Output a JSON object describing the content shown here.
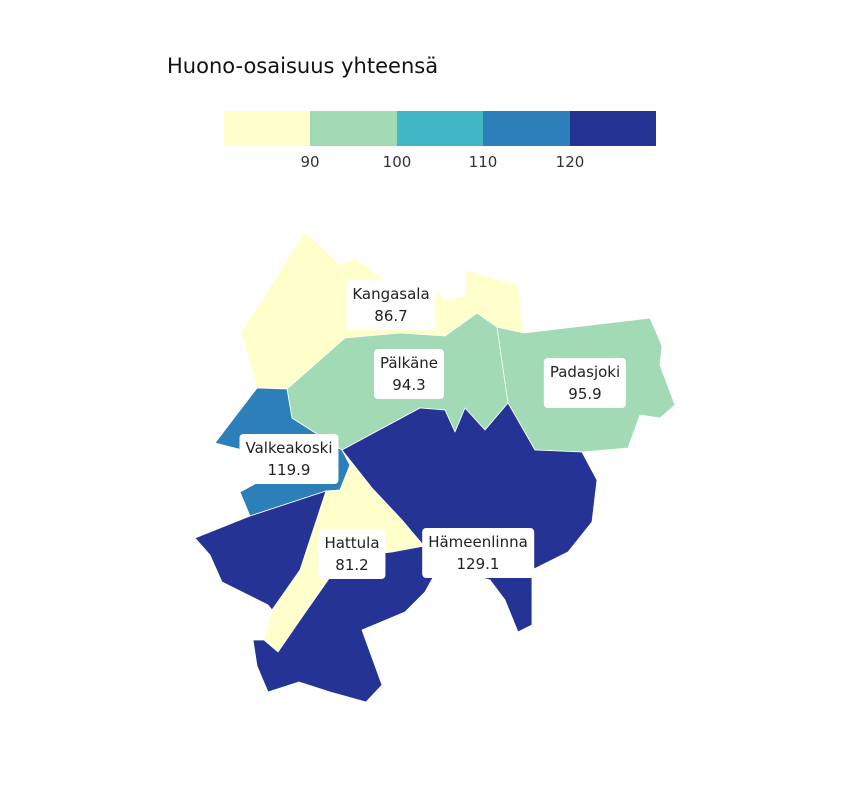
{
  "legend": {
    "title": "Huono-osaisuus yhteensä",
    "colors": [
      "#ffffcc",
      "#a1dab4",
      "#41b6c4",
      "#2c7fb8",
      "#253494"
    ],
    "ticks": [
      "90",
      "100",
      "110",
      "120"
    ]
  },
  "regions": [
    {
      "name": "Kangasala",
      "value": "86.7",
      "color": "#ffffcc"
    },
    {
      "name": "Pälkäne",
      "value": "94.3",
      "color": "#a1dab4"
    },
    {
      "name": "Padasjoki",
      "value": "95.9",
      "color": "#a1dab4"
    },
    {
      "name": "Valkeakoski",
      "value": "119.9",
      "color": "#2c7fb8"
    },
    {
      "name": "Hattula",
      "value": "81.2",
      "color": "#ffffcc"
    },
    {
      "name": "Hämeenlinna",
      "value": "129.1",
      "color": "#253494"
    }
  ]
}
